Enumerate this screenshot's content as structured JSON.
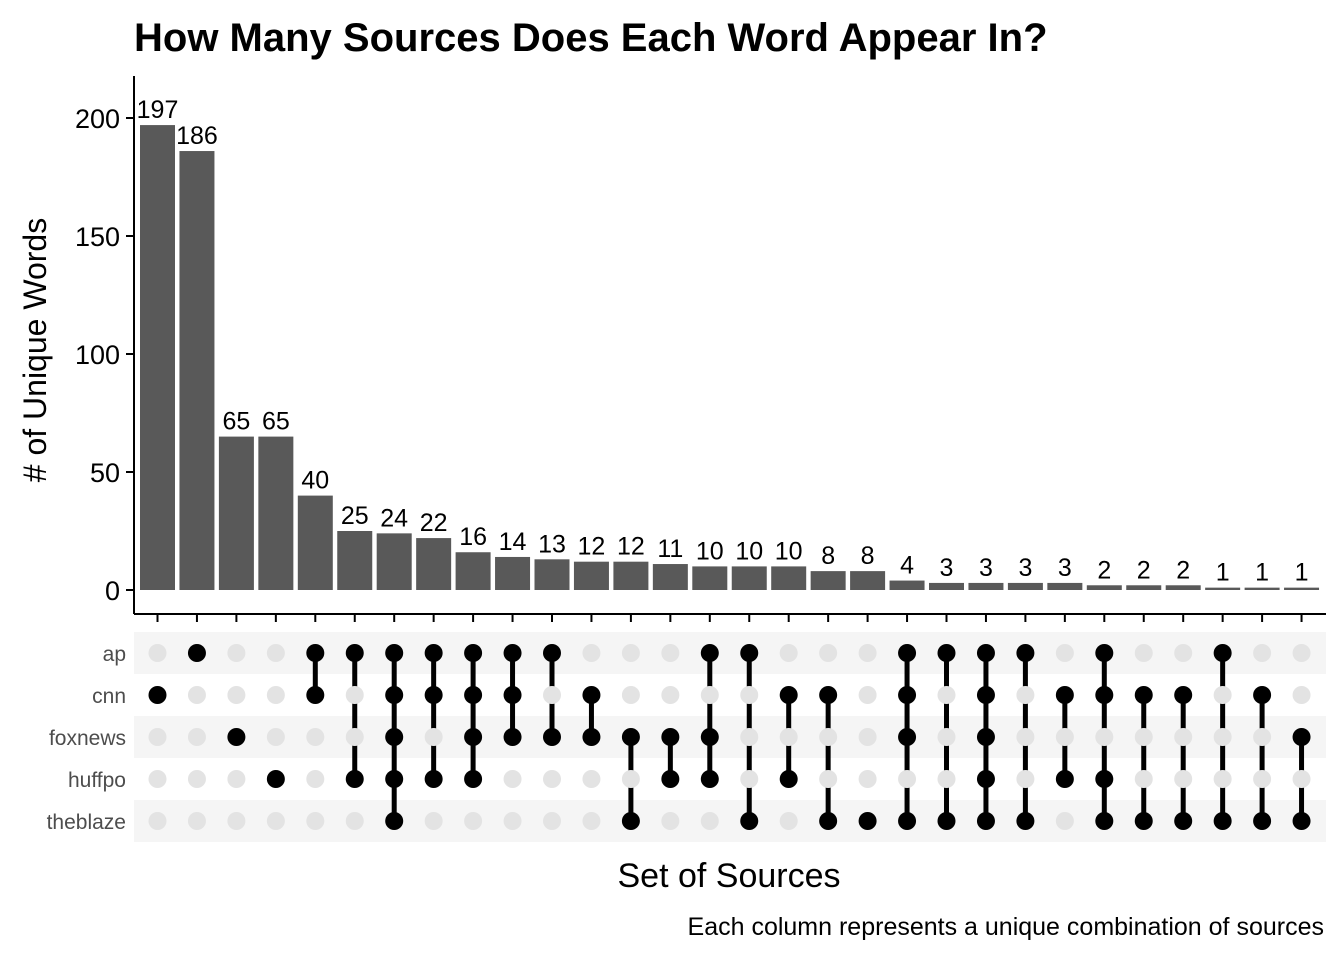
{
  "chart_data": {
    "type": "bar",
    "subtype": "upset",
    "title": "How Many Sources Does Each Word Appear In?",
    "ylabel": "# of Unique Words",
    "xlabel": "Set of Sources",
    "caption": "Each column represents a unique combination of sources",
    "ylim": [
      0,
      218
    ],
    "yticks": [
      0,
      50,
      100,
      150,
      200
    ],
    "grid": false,
    "sets": [
      "ap",
      "cnn",
      "foxnews",
      "huffpo",
      "theblaze"
    ],
    "values": [
      197,
      186,
      65,
      65,
      40,
      25,
      24,
      22,
      16,
      14,
      13,
      12,
      12,
      11,
      10,
      10,
      10,
      8,
      8,
      4,
      3,
      3,
      3,
      3,
      2,
      2,
      2,
      1,
      1,
      1
    ],
    "combinations": [
      [
        "cnn"
      ],
      [
        "ap"
      ],
      [
        "foxnews"
      ],
      [
        "huffpo"
      ],
      [
        "ap",
        "cnn"
      ],
      [
        "ap",
        "huffpo"
      ],
      [
        "ap",
        "cnn",
        "foxnews",
        "huffpo",
        "theblaze"
      ],
      [
        "ap",
        "cnn",
        "huffpo"
      ],
      [
        "ap",
        "cnn",
        "foxnews",
        "huffpo"
      ],
      [
        "ap",
        "cnn",
        "foxnews"
      ],
      [
        "ap",
        "foxnews"
      ],
      [
        "cnn",
        "foxnews"
      ],
      [
        "foxnews",
        "theblaze"
      ],
      [
        "foxnews",
        "huffpo"
      ],
      [
        "ap",
        "foxnews",
        "huffpo"
      ],
      [
        "ap",
        "theblaze"
      ],
      [
        "cnn",
        "huffpo"
      ],
      [
        "cnn",
        "theblaze"
      ],
      [
        "theblaze"
      ],
      [
        "ap",
        "cnn",
        "foxnews",
        "theblaze"
      ],
      [
        "ap",
        "theblaze"
      ],
      [
        "ap",
        "cnn",
        "foxnews",
        "huffpo",
        "theblaze"
      ],
      [
        "ap",
        "theblaze"
      ],
      [
        "cnn",
        "huffpo"
      ],
      [
        "ap",
        "cnn",
        "huffpo",
        "theblaze"
      ],
      [
        "cnn",
        "theblaze"
      ],
      [
        "cnn",
        "theblaze"
      ],
      [
        "ap",
        "theblaze"
      ],
      [
        "cnn",
        "theblaze"
      ],
      [
        "foxnews",
        "theblaze"
      ]
    ],
    "colors": {
      "bar": "#595959",
      "dot_active": "#000000",
      "dot_inactive": "#e3e3e3",
      "stripe": "#f5f5f5"
    }
  }
}
